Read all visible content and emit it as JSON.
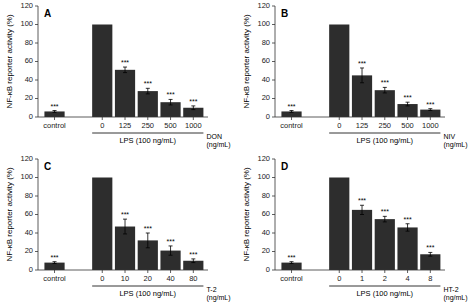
{
  "chart_data": [
    {
      "type": "bar",
      "title": "A",
      "ylabel": "NF-κB reporter activity (%)",
      "xlabel": "DON\n(ng/mL)",
      "categories": [
        "control",
        "0",
        "125",
        "250",
        "500",
        "1000"
      ],
      "values": [
        6,
        100,
        51,
        28,
        16,
        10
      ],
      "errors": [
        1,
        0,
        3,
        3,
        3,
        2
      ],
      "annotations": [
        {
          "category": "control",
          "text": "***"
        },
        {
          "category": "125",
          "text": "***"
        },
        {
          "category": "250",
          "text": "***"
        },
        {
          "category": "500",
          "text": "***"
        },
        {
          "category": "1000",
          "text": "***"
        }
      ],
      "group_label": {
        "text": "LPS (100 ng/mL)",
        "categories": [
          "0",
          "125",
          "250",
          "500",
          "1000"
        ]
      },
      "color": "#2d2d2d",
      "ylim": [
        0,
        120
      ],
      "yticks": [
        0,
        20,
        40,
        60,
        80,
        100,
        120
      ],
      "grid": false
    },
    {
      "type": "bar",
      "title": "B",
      "ylabel": "NF-κB reporter activity (%)",
      "xlabel": "NIV\n(ng/mL)",
      "categories": [
        "control",
        "0",
        "125",
        "250",
        "500",
        "1000"
      ],
      "values": [
        6,
        100,
        45,
        29,
        14,
        8
      ],
      "errors": [
        1,
        0,
        8,
        3,
        2,
        1
      ],
      "annotations": [
        {
          "category": "control",
          "text": "***"
        },
        {
          "category": "125",
          "text": "***"
        },
        {
          "category": "250",
          "text": "***"
        },
        {
          "category": "500",
          "text": "***"
        },
        {
          "category": "1000",
          "text": "***"
        }
      ],
      "group_label": {
        "text": "LPS (100 ng/mL)",
        "categories": [
          "0",
          "125",
          "250",
          "500",
          "1000"
        ]
      },
      "color": "#2d2d2d",
      "ylim": [
        0,
        120
      ],
      "yticks": [
        0,
        20,
        40,
        60,
        80,
        100,
        120
      ],
      "grid": false
    },
    {
      "type": "bar",
      "title": "C",
      "ylabel": "NF-κB reporter activity (%)",
      "xlabel": "T-2\n(ng/mL)",
      "categories": [
        "control",
        "0",
        "10",
        "20",
        "40",
        "80"
      ],
      "values": [
        8,
        100,
        47,
        32,
        21,
        10
      ],
      "errors": [
        1,
        0,
        8,
        8,
        5,
        2
      ],
      "annotations": [
        {
          "category": "control",
          "text": "***"
        },
        {
          "category": "10",
          "text": "***"
        },
        {
          "category": "20",
          "text": "***"
        },
        {
          "category": "40",
          "text": "***"
        },
        {
          "category": "80",
          "text": "***"
        }
      ],
      "group_label": {
        "text": "LPS (100 ng/mL)",
        "categories": [
          "0",
          "10",
          "20",
          "40",
          "80"
        ]
      },
      "color": "#2d2d2d",
      "ylim": [
        0,
        120
      ],
      "yticks": [
        0,
        20,
        40,
        60,
        80,
        100,
        120
      ],
      "grid": false
    },
    {
      "type": "bar",
      "title": "D",
      "ylabel": "NF-κB reporter activity (%)",
      "xlabel": "HT-2\n(ng/mL)",
      "categories": [
        "control",
        "0",
        "1",
        "2",
        "4",
        "8"
      ],
      "values": [
        8,
        100,
        65,
        55,
        46,
        17
      ],
      "errors": [
        1,
        0,
        5,
        3,
        4,
        2
      ],
      "annotations": [
        {
          "category": "control",
          "text": "***"
        },
        {
          "category": "1",
          "text": "***"
        },
        {
          "category": "2",
          "text": "***"
        },
        {
          "category": "4",
          "text": "***"
        },
        {
          "category": "8",
          "text": "***"
        }
      ],
      "group_label": {
        "text": "LPS (100 ng/mL)",
        "categories": [
          "0",
          "1",
          "2",
          "4",
          "8"
        ]
      },
      "color": "#2d2d2d",
      "ylim": [
        0,
        120
      ],
      "yticks": [
        0,
        20,
        40,
        60,
        80,
        100,
        120
      ],
      "grid": false
    }
  ]
}
